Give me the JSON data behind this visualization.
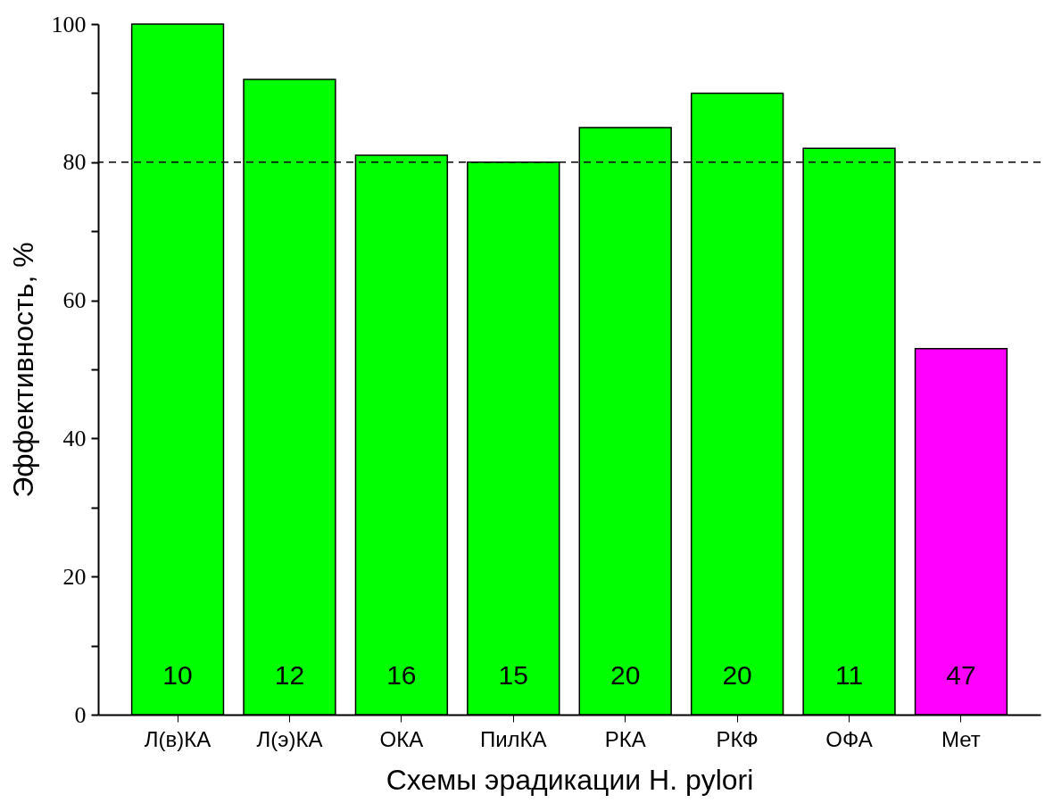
{
  "chart_data": {
    "type": "bar",
    "xlabel": "Схемы эрадикации H. pylori",
    "ylabel": "Эффективность, %",
    "categories": [
      "Л(в)КА",
      "Л(э)КА",
      "ОКА",
      "ПилКА",
      "РКА",
      "РКФ",
      "ОФА",
      "Мет"
    ],
    "values": [
      100,
      92,
      81,
      80,
      85,
      90,
      82,
      53
    ],
    "colors": [
      "#00ff00",
      "#00ff00",
      "#00ff00",
      "#00ff00",
      "#00ff00",
      "#00ff00",
      "#00ff00",
      "#ff00ff"
    ],
    "ylim": [
      0,
      100
    ],
    "yticks": [
      0,
      {
        "value": 10,
        "label": null
      },
      20,
      {
        "value": 30,
        "label": null
      },
      40,
      {
        "value": 50,
        "label": null
      },
      60,
      {
        "value": 70,
        "label": null
      },
      80,
      {
        "value": 90,
        "label": null
      },
      100
    ],
    "grid": false,
    "ref_lines": [
      {
        "axis": "y",
        "value": 80,
        "line_style": "dashed",
        "color": "#000000"
      }
    ],
    "annotations": [
      "10",
      "12",
      "16",
      "15",
      "20",
      "20",
      "11",
      "47"
    ]
  }
}
